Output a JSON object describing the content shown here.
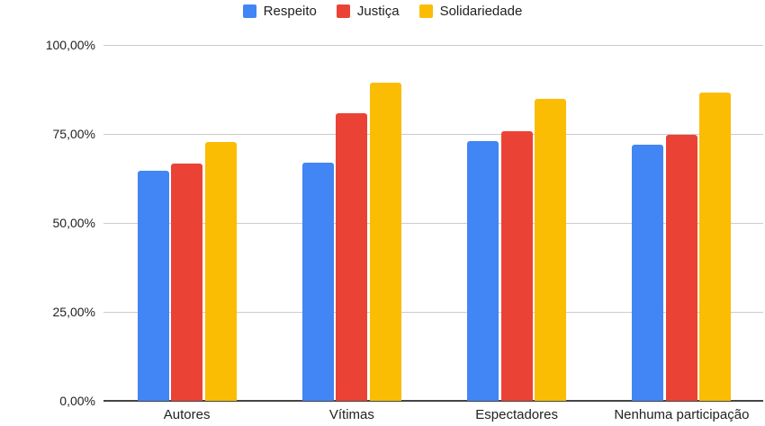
{
  "chart_data": {
    "type": "bar",
    "title": "",
    "xlabel": "",
    "ylabel": "",
    "categories": [
      "Autores",
      "Vítimas",
      "Espectadores",
      "Nenhuma participação"
    ],
    "series": [
      {
        "name": "Respeito",
        "color": "#4285f4",
        "values": [
          64.6,
          66.9,
          73.0,
          72.0
        ]
      },
      {
        "name": "Justiça",
        "color": "#ea4335",
        "values": [
          66.7,
          80.8,
          75.8,
          74.7
        ]
      },
      {
        "name": "Solidariedade",
        "color": "#fbbc04",
        "values": [
          72.7,
          89.4,
          84.8,
          86.6
        ]
      }
    ],
    "ylim": [
      0,
      100
    ],
    "yticks": [
      "0,00%",
      "25,00%",
      "50,00%",
      "75,00%",
      "100,00%"
    ],
    "grid": true,
    "legend_position": "top"
  },
  "legend": [
    {
      "label": "Respeito",
      "color": "#4285f4"
    },
    {
      "label": "Justiça",
      "color": "#ea4335"
    },
    {
      "label": "Solidariedade",
      "color": "#fbbc04"
    }
  ]
}
